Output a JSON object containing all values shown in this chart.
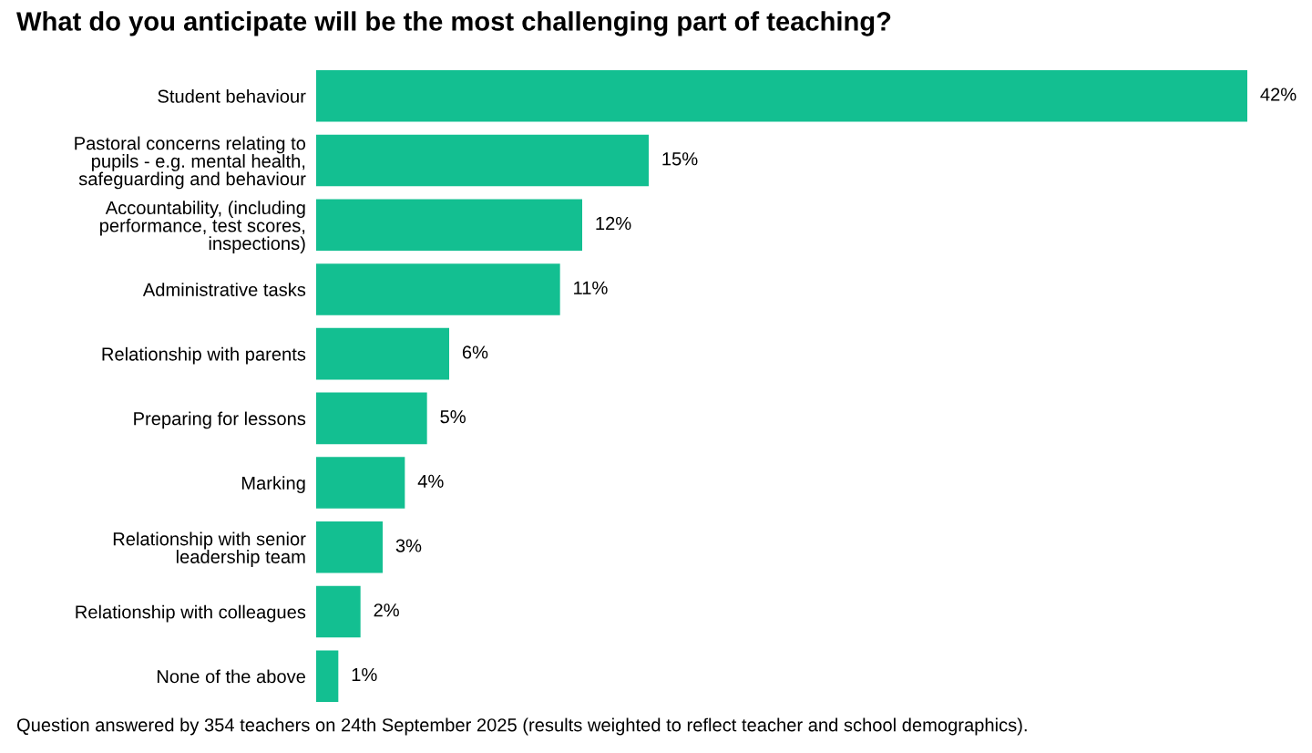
{
  "chart_data": {
    "type": "bar",
    "orientation": "horizontal",
    "title": "What do you anticipate will be the most challenging part of teaching?",
    "categories": [
      "Student behaviour",
      "Pastoral concerns relating to\npupils - e.g. mental health,\nsafeguarding and behaviour",
      "Accountability, (including\nperformance, test scores,\ninspections)",
      "Administrative tasks",
      "Relationship with parents",
      "Preparing for lessons",
      "Marking",
      "Relationship with senior\nleadership team",
      "Relationship with colleagues",
      "None of the above"
    ],
    "values": [
      42,
      15,
      12,
      11,
      6,
      5,
      4,
      3,
      2,
      1
    ],
    "value_labels": [
      "42%",
      "15%",
      "12%",
      "11%",
      "6%",
      "5%",
      "4%",
      "3%",
      "2%",
      "1%"
    ],
    "color": "#13bf91",
    "tick_labels": "y",
    "grid": false,
    "legend": false,
    "annotations": [
      "Question answered by 354 teachers on 24th September 2025 (results weighted to reflect teacher and school demographics)."
    ]
  }
}
